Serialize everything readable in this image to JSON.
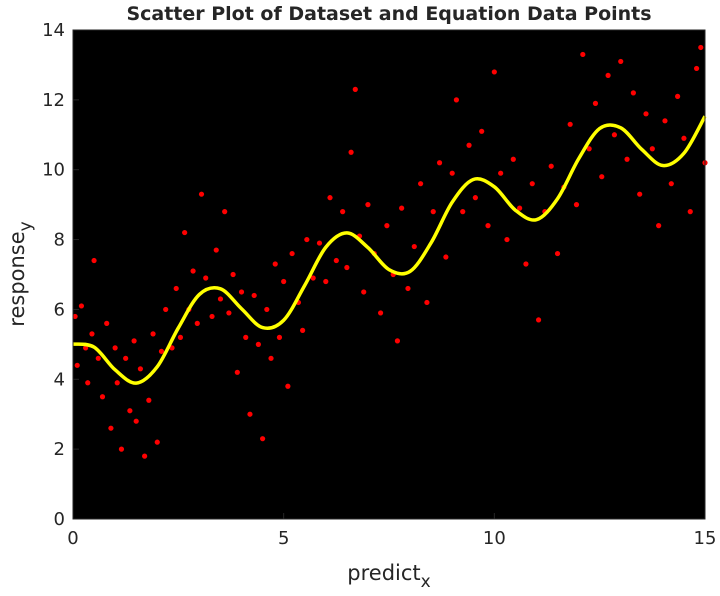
{
  "chart_data": {
    "type": "scatter",
    "title": "Scatter Plot of Dataset and Equation Data Points",
    "xlabel": "predict",
    "xlabel_subscript": "x",
    "ylabel": "response",
    "ylabel_subscript": "y",
    "xlim": [
      0,
      15
    ],
    "ylim": [
      0,
      14
    ],
    "xticks": [
      0,
      5,
      10,
      15
    ],
    "yticks": [
      0,
      2,
      4,
      6,
      8,
      10,
      12,
      14
    ],
    "background": "#000000",
    "series": [
      {
        "type": "scatter",
        "color": "#ff0000",
        "x": [
          0.05,
          0.1,
          0.2,
          0.3,
          0.35,
          0.45,
          0.5,
          0.6,
          0.7,
          0.8,
          0.9,
          1.0,
          1.05,
          1.15,
          1.25,
          1.35,
          1.45,
          1.5,
          1.6,
          1.7,
          1.8,
          1.9,
          2.0,
          2.1,
          2.2,
          2.35,
          2.45,
          2.55,
          2.65,
          2.75,
          2.85,
          2.95,
          3.05,
          3.15,
          3.3,
          3.4,
          3.5,
          3.6,
          3.7,
          3.8,
          3.9,
          4.0,
          4.1,
          4.2,
          4.3,
          4.4,
          4.5,
          4.6,
          4.7,
          4.8,
          4.9,
          5.0,
          5.1,
          5.2,
          5.35,
          5.45,
          5.55,
          5.7,
          5.85,
          6.0,
          6.1,
          6.25,
          6.4,
          6.5,
          6.6,
          6.7,
          6.8,
          6.9,
          7.0,
          7.15,
          7.3,
          7.45,
          7.6,
          7.7,
          7.8,
          7.95,
          8.1,
          8.25,
          8.4,
          8.55,
          8.7,
          8.85,
          9.0,
          9.1,
          9.25,
          9.4,
          9.55,
          9.7,
          9.85,
          10.0,
          10.15,
          10.3,
          10.45,
          10.6,
          10.75,
          10.9,
          11.05,
          11.2,
          11.35,
          11.5,
          11.65,
          11.8,
          11.95,
          12.1,
          12.25,
          12.4,
          12.55,
          12.7,
          12.85,
          13.0,
          13.15,
          13.3,
          13.45,
          13.6,
          13.75,
          13.9,
          14.05,
          14.2,
          14.35,
          14.5,
          14.65,
          14.8,
          14.9,
          15.0
        ],
        "values": [
          5.8,
          4.4,
          6.1,
          4.9,
          3.9,
          5.3,
          7.4,
          4.6,
          3.5,
          5.6,
          2.6,
          4.9,
          3.9,
          2.0,
          4.6,
          3.1,
          5.1,
          2.8,
          4.3,
          1.8,
          3.4,
          5.3,
          2.2,
          4.8,
          6.0,
          4.9,
          6.6,
          5.2,
          8.2,
          6.0,
          7.1,
          5.6,
          9.3,
          6.9,
          5.8,
          7.7,
          6.3,
          8.8,
          5.9,
          7.0,
          4.2,
          6.5,
          5.2,
          3.0,
          6.4,
          5.0,
          2.3,
          6.0,
          4.6,
          7.3,
          5.2,
          6.8,
          3.8,
          7.6,
          6.2,
          5.4,
          8.0,
          6.9,
          7.9,
          6.8,
          9.2,
          7.4,
          8.8,
          7.2,
          10.5,
          12.3,
          8.1,
          6.5,
          9.0,
          7.6,
          5.9,
          8.4,
          7.0,
          5.1,
          8.9,
          6.6,
          7.8,
          9.6,
          6.2,
          8.8,
          10.2,
          7.5,
          9.9,
          12.0,
          8.8,
          10.7,
          9.2,
          11.1,
          8.4,
          12.8,
          9.9,
          8.0,
          10.3,
          8.9,
          7.3,
          9.6,
          5.7,
          8.8,
          10.1,
          7.6,
          9.5,
          11.3,
          9.0,
          13.3,
          10.6,
          11.9,
          9.8,
          12.7,
          11.0,
          13.1,
          10.3,
          12.2,
          9.3,
          11.6,
          10.6,
          8.4,
          11.4,
          9.6,
          12.1,
          10.9,
          8.8,
          12.9,
          13.5,
          10.2
        ]
      },
      {
        "type": "line",
        "color": "#ffff00",
        "x": [
          0,
          0.5,
          1,
          1.5,
          2,
          2.5,
          3,
          3.5,
          4,
          4.5,
          5,
          5.5,
          6,
          6.5,
          7,
          7.5,
          8,
          8.5,
          9,
          9.5,
          10,
          10.5,
          11,
          11.5,
          12,
          12.5,
          13,
          13.5,
          14,
          14.5,
          15
        ],
        "values": [
          5.01,
          4.92,
          4.27,
          3.89,
          4.36,
          5.47,
          6.43,
          6.59,
          6.02,
          5.48,
          5.69,
          6.69,
          7.78,
          8.19,
          7.77,
          7.14,
          7.09,
          7.91,
          9.07,
          9.72,
          9.51,
          8.84,
          8.57,
          9.17,
          10.31,
          11.18,
          11.2,
          10.58,
          10.12,
          10.47,
          11.53
        ]
      }
    ]
  }
}
